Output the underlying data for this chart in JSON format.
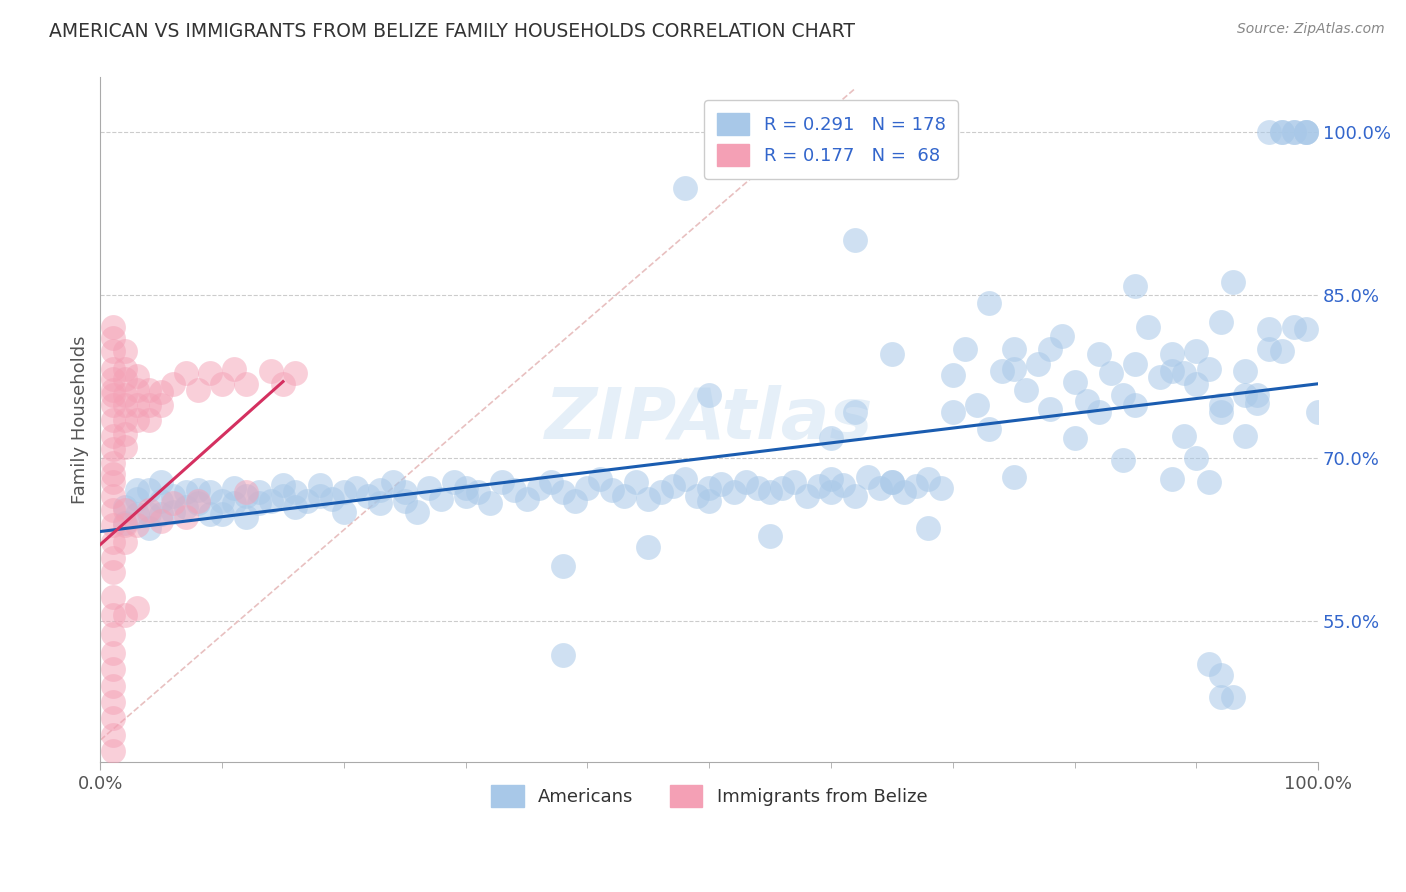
{
  "title": "AMERICAN VS IMMIGRANTS FROM BELIZE FAMILY HOUSEHOLDS CORRELATION CHART",
  "source": "Source: ZipAtlas.com",
  "ylabel": "Family Households",
  "xlim": [
    0.0,
    1.0
  ],
  "ylim": [
    0.42,
    1.05
  ],
  "yticks": [
    0.55,
    0.7,
    0.85,
    1.0
  ],
  "ytick_labels": [
    "55.0%",
    "70.0%",
    "85.0%",
    "100.0%"
  ],
  "xticks": [
    0.0,
    1.0
  ],
  "xtick_labels": [
    "0.0%",
    "100.0%"
  ],
  "watermark": "ZIPAtlas",
  "blue_color": "#a8c8e8",
  "pink_color": "#f4a0b5",
  "blue_line_color": "#1a5cb0",
  "pink_line_color": "#d43060",
  "diag_color": "#e8c0c0",
  "grid_color": "#cccccc",
  "title_color": "#333333",
  "blue_scatter": [
    [
      0.02,
      0.64
    ],
    [
      0.02,
      0.655
    ],
    [
      0.03,
      0.662
    ],
    [
      0.03,
      0.648
    ],
    [
      0.03,
      0.67
    ],
    [
      0.04,
      0.635
    ],
    [
      0.04,
      0.67
    ],
    [
      0.04,
      0.648
    ],
    [
      0.05,
      0.66
    ],
    [
      0.05,
      0.648
    ],
    [
      0.05,
      0.678
    ],
    [
      0.06,
      0.665
    ],
    [
      0.06,
      0.65
    ],
    [
      0.07,
      0.668
    ],
    [
      0.07,
      0.655
    ],
    [
      0.08,
      0.658
    ],
    [
      0.08,
      0.67
    ],
    [
      0.09,
      0.648
    ],
    [
      0.09,
      0.668
    ],
    [
      0.1,
      0.66
    ],
    [
      0.1,
      0.648
    ],
    [
      0.11,
      0.658
    ],
    [
      0.11,
      0.672
    ],
    [
      0.12,
      0.665
    ],
    [
      0.12,
      0.645
    ],
    [
      0.13,
      0.668
    ],
    [
      0.13,
      0.658
    ],
    [
      0.14,
      0.66
    ],
    [
      0.15,
      0.665
    ],
    [
      0.15,
      0.675
    ],
    [
      0.16,
      0.655
    ],
    [
      0.16,
      0.668
    ],
    [
      0.17,
      0.66
    ],
    [
      0.18,
      0.665
    ],
    [
      0.18,
      0.675
    ],
    [
      0.19,
      0.662
    ],
    [
      0.2,
      0.668
    ],
    [
      0.2,
      0.65
    ],
    [
      0.21,
      0.672
    ],
    [
      0.22,
      0.665
    ],
    [
      0.23,
      0.67
    ],
    [
      0.23,
      0.658
    ],
    [
      0.24,
      0.678
    ],
    [
      0.25,
      0.668
    ],
    [
      0.25,
      0.66
    ],
    [
      0.26,
      0.65
    ],
    [
      0.27,
      0.672
    ],
    [
      0.28,
      0.662
    ],
    [
      0.29,
      0.678
    ],
    [
      0.3,
      0.665
    ],
    [
      0.3,
      0.672
    ],
    [
      0.31,
      0.668
    ],
    [
      0.32,
      0.658
    ],
    [
      0.33,
      0.678
    ],
    [
      0.34,
      0.67
    ],
    [
      0.35,
      0.662
    ],
    [
      0.36,
      0.672
    ],
    [
      0.37,
      0.678
    ],
    [
      0.38,
      0.668
    ],
    [
      0.39,
      0.66
    ],
    [
      0.4,
      0.672
    ],
    [
      0.41,
      0.68
    ],
    [
      0.42,
      0.67
    ],
    [
      0.43,
      0.665
    ],
    [
      0.44,
      0.678
    ],
    [
      0.45,
      0.662
    ],
    [
      0.46,
      0.668
    ],
    [
      0.47,
      0.674
    ],
    [
      0.48,
      0.68
    ],
    [
      0.49,
      0.665
    ],
    [
      0.5,
      0.672
    ],
    [
      0.5,
      0.66
    ],
    [
      0.51,
      0.676
    ],
    [
      0.52,
      0.668
    ],
    [
      0.53,
      0.678
    ],
    [
      0.54,
      0.672
    ],
    [
      0.55,
      0.668
    ],
    [
      0.56,
      0.672
    ],
    [
      0.57,
      0.678
    ],
    [
      0.58,
      0.665
    ],
    [
      0.59,
      0.674
    ],
    [
      0.6,
      0.68
    ],
    [
      0.6,
      0.668
    ],
    [
      0.61,
      0.675
    ],
    [
      0.62,
      0.665
    ],
    [
      0.63,
      0.682
    ],
    [
      0.64,
      0.672
    ],
    [
      0.65,
      0.678
    ],
    [
      0.65,
      0.795
    ],
    [
      0.66,
      0.668
    ],
    [
      0.67,
      0.674
    ],
    [
      0.68,
      0.68
    ],
    [
      0.69,
      0.672
    ],
    [
      0.7,
      0.776
    ],
    [
      0.71,
      0.8
    ],
    [
      0.72,
      0.748
    ],
    [
      0.73,
      0.726
    ],
    [
      0.74,
      0.78
    ],
    [
      0.75,
      0.8
    ],
    [
      0.76,
      0.762
    ],
    [
      0.77,
      0.786
    ],
    [
      0.78,
      0.745
    ],
    [
      0.79,
      0.812
    ],
    [
      0.8,
      0.77
    ],
    [
      0.81,
      0.752
    ],
    [
      0.82,
      0.795
    ],
    [
      0.83,
      0.778
    ],
    [
      0.84,
      0.758
    ],
    [
      0.85,
      0.786
    ],
    [
      0.86,
      0.82
    ],
    [
      0.87,
      0.774
    ],
    [
      0.88,
      0.795
    ],
    [
      0.89,
      0.778
    ],
    [
      0.9,
      0.768
    ],
    [
      0.91,
      0.782
    ],
    [
      0.92,
      0.825
    ],
    [
      0.93,
      0.862
    ],
    [
      0.94,
      0.78
    ],
    [
      0.95,
      0.75
    ],
    [
      0.96,
      1.0
    ],
    [
      0.97,
      1.0
    ],
    [
      0.97,
      1.0
    ],
    [
      0.98,
      1.0
    ],
    [
      0.98,
      1.0
    ],
    [
      0.99,
      1.0
    ],
    [
      0.99,
      1.0
    ],
    [
      0.99,
      1.0
    ],
    [
      1.0,
      0.742
    ],
    [
      0.48,
      0.948
    ],
    [
      0.62,
      0.9
    ],
    [
      0.73,
      0.842
    ],
    [
      0.85,
      0.858
    ],
    [
      0.91,
      0.51
    ],
    [
      0.92,
      0.48
    ],
    [
      0.92,
      0.5
    ],
    [
      0.93,
      0.48
    ],
    [
      0.55,
      0.628
    ],
    [
      0.45,
      0.618
    ],
    [
      0.38,
      0.6
    ],
    [
      0.38,
      0.518
    ],
    [
      0.68,
      0.635
    ],
    [
      0.75,
      0.682
    ],
    [
      0.8,
      0.718
    ],
    [
      0.85,
      0.748
    ],
    [
      0.89,
      0.72
    ],
    [
      0.9,
      0.7
    ],
    [
      0.91,
      0.678
    ],
    [
      0.92,
      0.748
    ],
    [
      0.94,
      0.72
    ],
    [
      0.95,
      0.758
    ],
    [
      0.96,
      0.8
    ],
    [
      0.62,
      0.742
    ],
    [
      0.75,
      0.782
    ],
    [
      0.82,
      0.742
    ],
    [
      0.88,
      0.78
    ],
    [
      0.92,
      0.742
    ],
    [
      0.96,
      0.818
    ],
    [
      0.97,
      0.798
    ],
    [
      0.98,
      0.82
    ],
    [
      0.99,
      0.818
    ],
    [
      0.5,
      0.758
    ],
    [
      0.6,
      0.718
    ],
    [
      0.65,
      0.678
    ],
    [
      0.7,
      0.742
    ],
    [
      0.78,
      0.8
    ],
    [
      0.84,
      0.698
    ],
    [
      0.88,
      0.68
    ],
    [
      0.9,
      0.798
    ],
    [
      0.94,
      0.758
    ]
  ],
  "pink_scatter": [
    [
      0.01,
      0.735
    ],
    [
      0.01,
      0.758
    ],
    [
      0.01,
      0.772
    ],
    [
      0.01,
      0.748
    ],
    [
      0.01,
      0.762
    ],
    [
      0.01,
      0.782
    ],
    [
      0.01,
      0.798
    ],
    [
      0.01,
      0.81
    ],
    [
      0.01,
      0.72
    ],
    [
      0.01,
      0.708
    ],
    [
      0.01,
      0.695
    ],
    [
      0.01,
      0.82
    ],
    [
      0.02,
      0.735
    ],
    [
      0.02,
      0.758
    ],
    [
      0.02,
      0.772
    ],
    [
      0.02,
      0.748
    ],
    [
      0.02,
      0.782
    ],
    [
      0.02,
      0.722
    ],
    [
      0.02,
      0.71
    ],
    [
      0.02,
      0.798
    ],
    [
      0.03,
      0.748
    ],
    [
      0.03,
      0.762
    ],
    [
      0.03,
      0.775
    ],
    [
      0.03,
      0.735
    ],
    [
      0.04,
      0.748
    ],
    [
      0.04,
      0.762
    ],
    [
      0.04,
      0.735
    ],
    [
      0.05,
      0.76
    ],
    [
      0.05,
      0.748
    ],
    [
      0.06,
      0.768
    ],
    [
      0.07,
      0.778
    ],
    [
      0.08,
      0.762
    ],
    [
      0.09,
      0.778
    ],
    [
      0.1,
      0.768
    ],
    [
      0.11,
      0.782
    ],
    [
      0.12,
      0.768
    ],
    [
      0.14,
      0.78
    ],
    [
      0.15,
      0.768
    ],
    [
      0.16,
      0.778
    ],
    [
      0.01,
      0.622
    ],
    [
      0.01,
      0.638
    ],
    [
      0.01,
      0.652
    ],
    [
      0.01,
      0.665
    ],
    [
      0.01,
      0.678
    ],
    [
      0.01,
      0.608
    ],
    [
      0.01,
      0.595
    ],
    [
      0.01,
      0.685
    ],
    [
      0.02,
      0.638
    ],
    [
      0.02,
      0.622
    ],
    [
      0.02,
      0.652
    ],
    [
      0.03,
      0.638
    ],
    [
      0.04,
      0.652
    ],
    [
      0.05,
      0.642
    ],
    [
      0.06,
      0.658
    ],
    [
      0.07,
      0.645
    ],
    [
      0.08,
      0.66
    ],
    [
      0.12,
      0.668
    ],
    [
      0.01,
      0.572
    ],
    [
      0.01,
      0.555
    ],
    [
      0.01,
      0.538
    ],
    [
      0.02,
      0.555
    ],
    [
      0.03,
      0.562
    ],
    [
      0.01,
      0.52
    ],
    [
      0.01,
      0.505
    ],
    [
      0.01,
      0.49
    ],
    [
      0.01,
      0.475
    ],
    [
      0.01,
      0.46
    ],
    [
      0.01,
      0.445
    ],
    [
      0.01,
      0.43
    ]
  ],
  "blue_line": [
    [
      0.0,
      0.632
    ],
    [
      1.0,
      0.768
    ]
  ],
  "pink_line": [
    [
      0.0,
      0.62
    ],
    [
      0.15,
      0.77
    ]
  ]
}
